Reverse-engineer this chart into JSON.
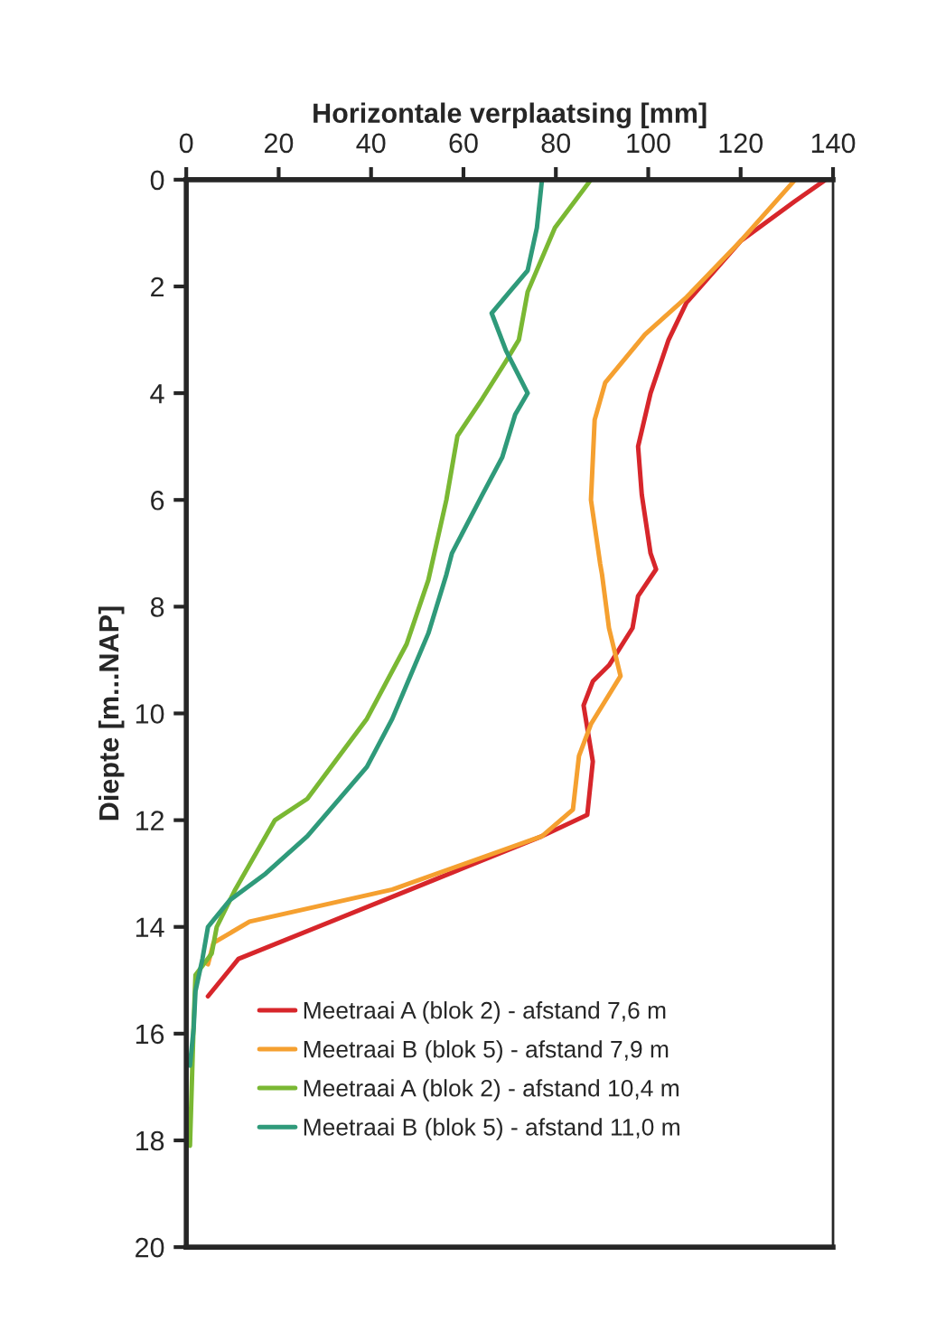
{
  "chart_data": {
    "type": "line",
    "xlabel": "Horizontale verplaatsing [mm]",
    "ylabel": "Diepte [m...NAP]",
    "xlim": [
      0,
      140
    ],
    "xticks": [
      0,
      20,
      40,
      60,
      80,
      100,
      120,
      140
    ],
    "ylim": [
      20,
      0
    ],
    "yticks": [
      0,
      2,
      4,
      6,
      8,
      10,
      12,
      14,
      16,
      18,
      20
    ],
    "grid": false,
    "legend": "bottom left",
    "line_style": "solid",
    "marker": "none",
    "series": [
      {
        "name": "Meetraai A (blok 2) - afstand 7,6 m",
        "color": "#d7262b",
        "x": [
          138.4,
          131.8,
          120,
          108.3,
          104.4,
          100.5,
          97.8,
          98.6,
          100.5,
          101.7,
          97.8,
          96.6,
          91.5,
          88,
          86,
          88,
          86.8,
          77,
          48.5,
          11.3,
          4.7
        ],
        "values": [
          0,
          0.4,
          1.15,
          2.3,
          3.0,
          4.0,
          5.0,
          5.9,
          7.0,
          7.3,
          7.8,
          8.4,
          9.1,
          9.4,
          9.85,
          10.9,
          11.9,
          12.3,
          13.3,
          14.6,
          15.3
        ]
      },
      {
        "name": "Meetraai B (blok 5) - afstand 7,9 m",
        "color": "#f5a030",
        "x": [
          131.8,
          120,
          108.3,
          99.3,
          90.7,
          88.4,
          87.6,
          89.6,
          90,
          91.5,
          94,
          87.6,
          85,
          83.7,
          77,
          44.6,
          13.7,
          5.9,
          4.7
        ],
        "values": [
          0,
          1.15,
          2.2,
          2.9,
          3.8,
          4.5,
          6.0,
          7.2,
          7.4,
          8.4,
          9.3,
          10.2,
          10.8,
          11.8,
          12.3,
          13.3,
          13.9,
          14.3,
          14.7
        ]
      },
      {
        "name": "Meetraai A (blok 2) - afstand 10,4 m",
        "color": "#7ab833",
        "x": [
          87.6,
          79.8,
          73.9,
          72,
          69.2,
          64.1,
          58.7,
          56.3,
          52.4,
          47.7,
          39.1,
          26.2,
          19.2,
          10.6,
          6.6,
          5.5,
          2,
          1.6,
          0.8
        ],
        "values": [
          0,
          0.9,
          2.1,
          3.0,
          3.4,
          4.1,
          4.8,
          6.0,
          7.5,
          8.7,
          10.1,
          11.6,
          12.0,
          13.3,
          14.0,
          14.5,
          14.9,
          15.8,
          18.1
        ]
      },
      {
        "name": "Meetraai B (blok 5) - afstand 11,0 m",
        "color": "#2f9a7a",
        "x": [
          77,
          75.9,
          73.9,
          70,
          66.1,
          69.2,
          73.9,
          71.2,
          68.4,
          64.1,
          57.5,
          56.3,
          52.4,
          44.6,
          39.1,
          26.2,
          17.2,
          9.4,
          4.7,
          3.5,
          2,
          1.6,
          0.8
        ],
        "values": [
          0,
          0.9,
          1.7,
          2.1,
          2.5,
          3.2,
          4.0,
          4.4,
          5.2,
          5.9,
          7.0,
          7.4,
          8.5,
          10.1,
          11.0,
          12.3,
          13.0,
          13.5,
          14.0,
          14.6,
          15.2,
          15.9,
          16.6
        ]
      }
    ]
  }
}
